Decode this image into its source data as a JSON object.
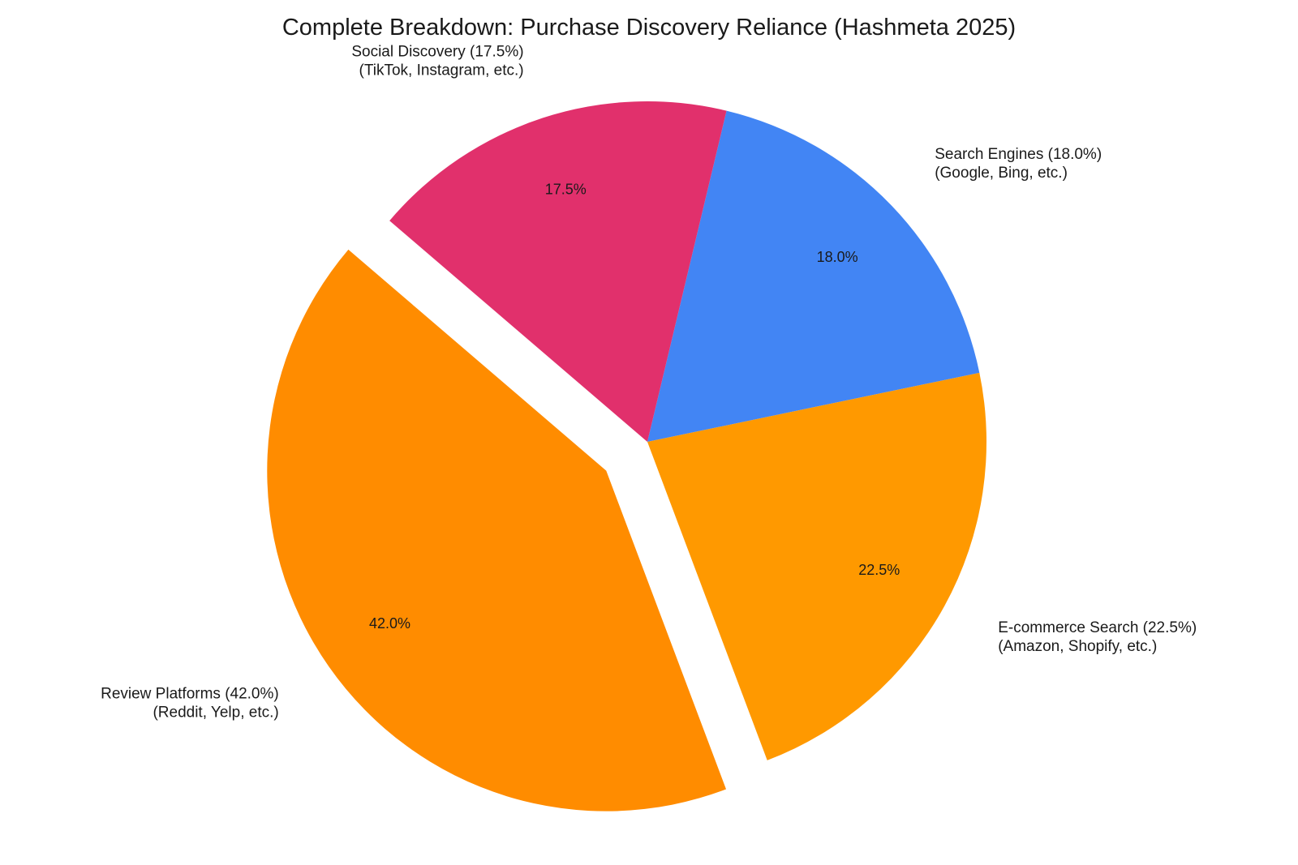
{
  "chart_data": {
    "type": "pie",
    "title": "Complete Breakdown: Purchase Discovery Reliance (Hashmeta 2025)",
    "slices": [
      {
        "name": "Search Engines (18.0%)",
        "detail": "(Google, Bing, etc.)",
        "value": 18.0,
        "pct_label": "18.0%",
        "color": "#4285F4",
        "exploded": false
      },
      {
        "name": "E-commerce Search (22.5%)",
        "detail": "(Amazon, Shopify, etc.)",
        "value": 22.5,
        "pct_label": "22.5%",
        "color": "#FF9900",
        "exploded": false
      },
      {
        "name": "Review Platforms (42.0%)",
        "detail": "(Reddit, Yelp, etc.)",
        "value": 42.0,
        "pct_label": "42.0%",
        "color": "#FF8C00",
        "exploded": true
      },
      {
        "name": "Social Discovery (17.5%)",
        "detail": "(TikTok, Instagram, etc.)",
        "value": 17.5,
        "pct_label": "17.5%",
        "color": "#E1306C",
        "exploded": false
      }
    ],
    "start_angle_deg": 76.5,
    "direction": "clockwise",
    "legend": "none"
  }
}
